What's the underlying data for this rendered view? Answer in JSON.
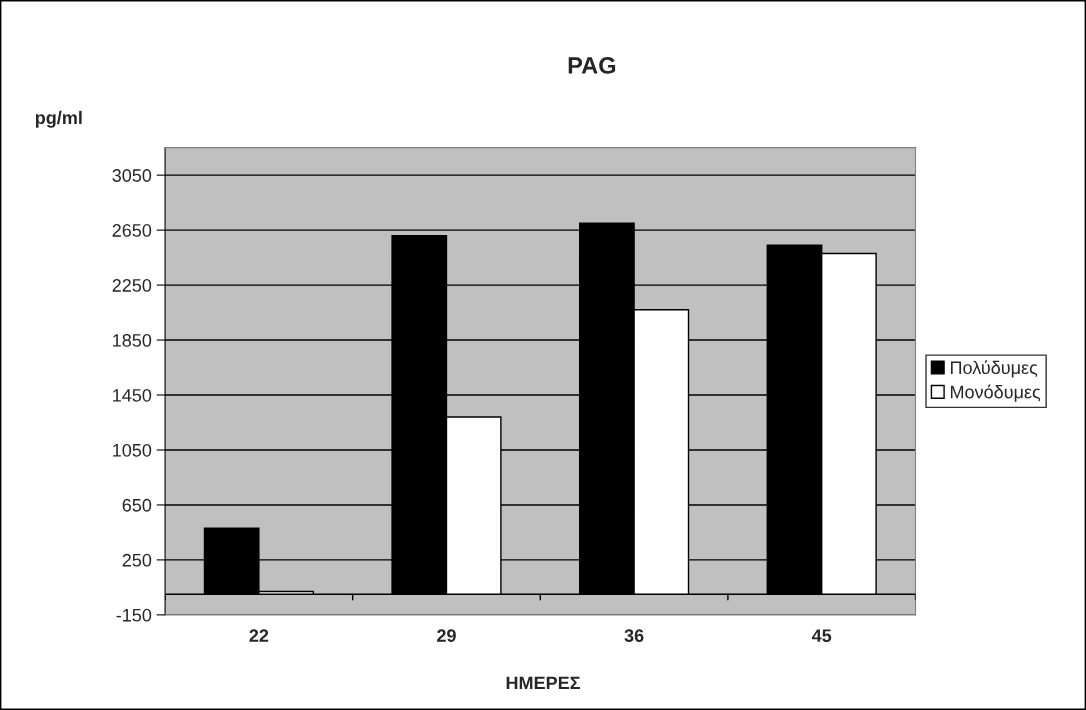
{
  "chart_data": {
    "type": "bar",
    "title": "PAG",
    "ylabel": "pg/ml",
    "xlabel": "ΗΜΕΡΕΣ",
    "categories": [
      "22",
      "29",
      "36",
      "45"
    ],
    "series": [
      {
        "name": "Πολύδυμες",
        "color": "#000000",
        "values": [
          480,
          2610,
          2700,
          2540
        ]
      },
      {
        "name": "Μονόδυμες",
        "color": "#ffffff",
        "values": [
          20,
          1290,
          2070,
          2480
        ]
      }
    ],
    "ylim": [
      -150,
      3250
    ],
    "yticks": [
      -150,
      250,
      650,
      1050,
      1450,
      1850,
      2250,
      2650,
      3050
    ],
    "grid": "y",
    "legend": "right"
  }
}
